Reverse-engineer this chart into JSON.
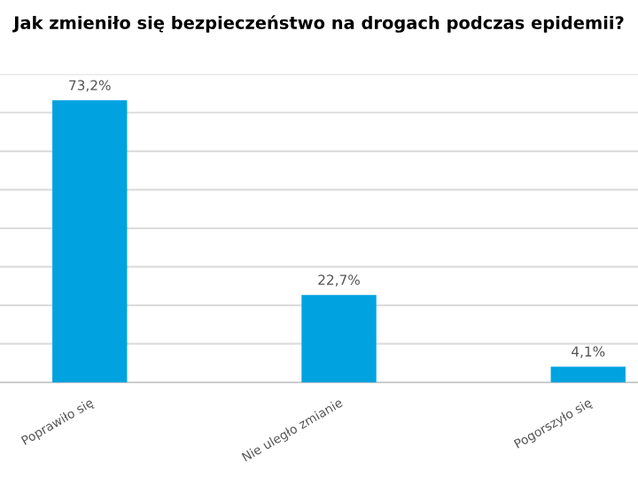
{
  "chart_data": {
    "type": "bar",
    "title": "Jak zmieniło się bezpieczeństwo na drogach podczas epidemii?",
    "categories": [
      "Poprawiło się",
      "Nie uległo zmianie",
      "Pogorszyło się"
    ],
    "values": [
      73.2,
      22.7,
      4.1
    ],
    "value_labels": [
      "73,2%",
      "22,7%",
      "4,1%"
    ],
    "color": "#00a3e0",
    "ylim": [
      0,
      80
    ],
    "yticks": [
      {
        "value": 0,
        "label": null
      },
      {
        "value": 10,
        "label": null
      },
      {
        "value": 20,
        "label": null
      },
      {
        "value": 30,
        "label": null
      },
      {
        "value": 40,
        "label": null
      },
      {
        "value": 50,
        "label": null
      },
      {
        "value": 60,
        "label": null
      },
      {
        "value": 70,
        "label": null
      },
      {
        "value": 80,
        "label": null
      }
    ],
    "tick_labels": "x",
    "grid": "y"
  }
}
